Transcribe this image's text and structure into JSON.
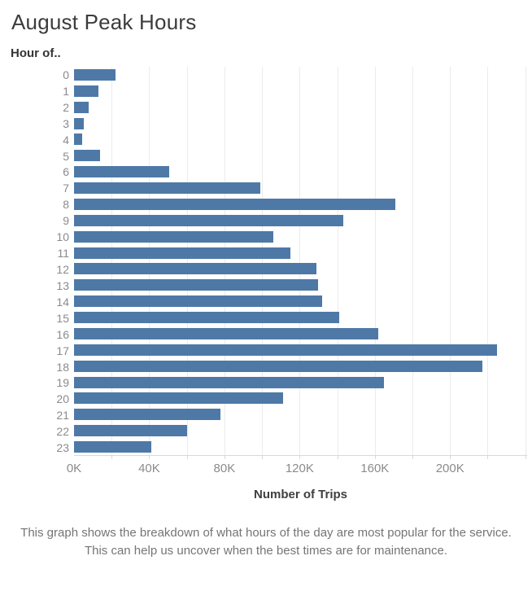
{
  "page": {
    "caption": "This graph shows the breakdown of what hours of the day are most popular for the service. This can help us uncover when the best times are for maintenance."
  },
  "chart_data": {
    "type": "bar",
    "orientation": "horizontal",
    "title": "August Peak Hours",
    "ylabel": "Hour of..",
    "xlabel": "Number of Trips",
    "categories": [
      "0",
      "1",
      "2",
      "3",
      "4",
      "5",
      "6",
      "7",
      "8",
      "9",
      "10",
      "11",
      "12",
      "13",
      "14",
      "15",
      "16",
      "17",
      "18",
      "19",
      "20",
      "21",
      "22",
      "23"
    ],
    "values": [
      22000,
      13000,
      8000,
      5000,
      4500,
      14000,
      50500,
      99000,
      171000,
      143000,
      106000,
      115000,
      129000,
      130000,
      132000,
      141000,
      162000,
      225000,
      217000,
      165000,
      111000,
      78000,
      60000,
      41000
    ],
    "xlim": [
      0,
      241000
    ],
    "x_ticks": [
      0,
      40000,
      80000,
      120000,
      160000,
      200000
    ],
    "x_tick_labels": [
      "0K",
      "40K",
      "80K",
      "120K",
      "160K",
      "200K"
    ],
    "gridline_interval": 20000,
    "grid": true,
    "legend": "none",
    "bar_color": "#4e79a7",
    "gridline_color": "#ebebeb",
    "axis_text_color": "#8b8b8b"
  }
}
